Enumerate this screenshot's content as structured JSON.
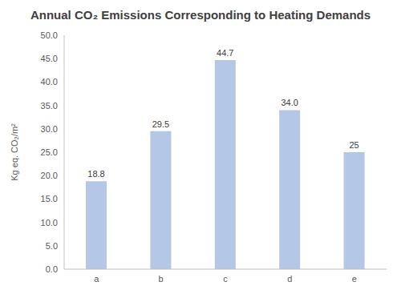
{
  "chart_data": {
    "type": "bar",
    "title": "Annual CO₂ Emissions Corresponding to Heating Demands",
    "y_label": "Kg eq. CO₂/m²",
    "categories": [
      "a",
      "b",
      "c",
      "d",
      "e"
    ],
    "values": [
      18.8,
      29.5,
      44.7,
      34.0,
      25
    ],
    "value_labels": [
      "18.8",
      "29.5",
      "44.7",
      "34.0",
      "25"
    ],
    "color": "#b4c7e7",
    "ylim": [
      0,
      50
    ],
    "yticks": [
      {
        "value": 0,
        "label": "0.0"
      },
      {
        "value": 5,
        "label": "5.0"
      },
      {
        "value": 10,
        "label": "10.0"
      },
      {
        "value": 15,
        "label": "15.0"
      },
      {
        "value": 20,
        "label": "20.0"
      },
      {
        "value": 25,
        "label": "25.0"
      },
      {
        "value": 30,
        "label": "30.0"
      },
      {
        "value": 35,
        "label": "35.0"
      },
      {
        "value": 40,
        "label": "40.0"
      },
      {
        "value": 45,
        "label": "45.0"
      },
      {
        "value": 50,
        "label": "50.0"
      }
    ],
    "grid": false,
    "data_labels": true
  }
}
